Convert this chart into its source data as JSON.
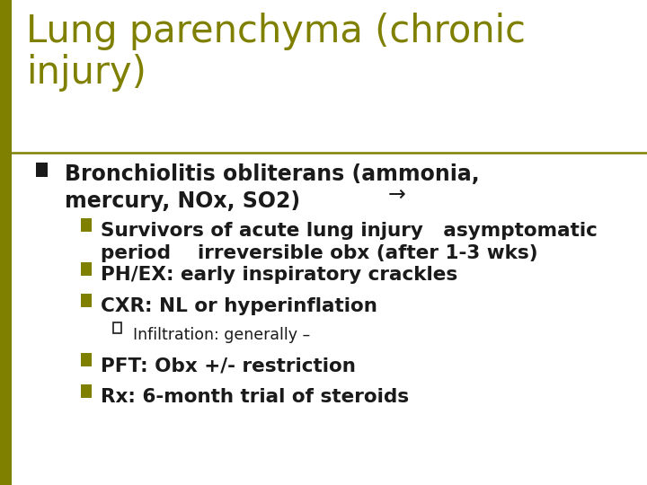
{
  "title": "Lung parenchyma (chronic\ninjury)",
  "title_color": "#808000",
  "background_color": "#ffffff",
  "separator_color": "#808000",
  "bullet_color": "#808000",
  "text_color": "#1a1a1a",
  "title_fontsize": 30,
  "body_fontsize": 17,
  "sub_fontsize": 15.5,
  "subsub_fontsize": 12.5,
  "p_bullet": "Bronchiolitis obliterans (ammonia,\nmercury, NOx, SO2)",
  "arrow_label": "→",
  "n_bullets": [
    "Survivors of acute lung injury   asymptomatic\nperiod    irreversible obx (after 1-3 wks)",
    "PH/EX: early inspiratory crackles",
    "CXR: NL or hyperinflation"
  ],
  "p_sub_bullet": "Infiltration: generally –",
  "n_bullets2": [
    "PFT: Obx +/- restriction",
    "Rx: 6-month trial of steroids"
  ],
  "left_bar_color": "#808000",
  "left_bar_width": 0.018
}
